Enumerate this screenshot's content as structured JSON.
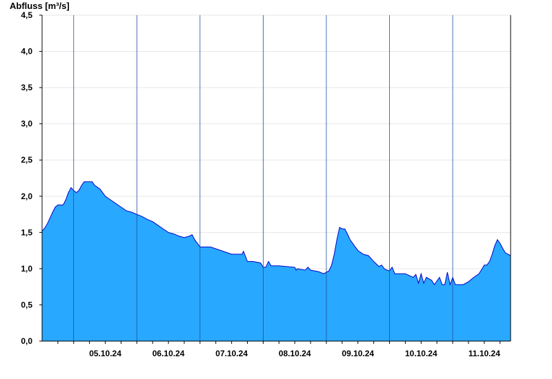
{
  "chart_data": {
    "type": "area",
    "ylabel": "Abfluss [m³/s]",
    "ylim": [
      0,
      4.5
    ],
    "xlim": [
      "2024-10-04T12:00",
      "2024-10-11T22:00"
    ],
    "y_ticks": [
      "0,0",
      "0,5",
      "1,0",
      "1,5",
      "2,0",
      "2,5",
      "3,0",
      "3,5",
      "4,0",
      "4,5"
    ],
    "y_tick_values": [
      0,
      0.5,
      1.0,
      1.5,
      2.0,
      2.5,
      3.0,
      3.5,
      4.0,
      4.5
    ],
    "x_tick_labels": [
      "05.10.24",
      "06.10.24",
      "07.10.24",
      "08.10.24",
      "09.10.24",
      "10.10.24",
      "11.10.24"
    ],
    "x_tick_dates": [
      "2024-10-05T12:00",
      "2024-10-06T12:00",
      "2024-10-07T12:00",
      "2024-10-08T12:00",
      "2024-10-09T12:00",
      "2024-10-10T12:00",
      "2024-10-11T12:00"
    ],
    "day_boundaries": [
      "2024-10-05T00:00",
      "2024-10-06T00:00",
      "2024-10-07T00:00",
      "2024-10-08T00:00",
      "2024-10-09T00:00",
      "2024-10-10T00:00",
      "2024-10-11T00:00",
      "2024-10-12T00:00"
    ],
    "grid": "horizontal",
    "fill_color": "#29a8ff",
    "line_color": "#0000c8",
    "series": [
      {
        "x": [
          "2024-10-04T12:00",
          "2024-10-04T13:00",
          "2024-10-04T14:00",
          "2024-10-04T15:00",
          "2024-10-04T16:00",
          "2024-10-04T17:00",
          "2024-10-04T18:00",
          "2024-10-04T20:00",
          "2024-10-04T21:00",
          "2024-10-04T22:00",
          "2024-10-04T23:00",
          "2024-10-05T00:00",
          "2024-10-05T01:00",
          "2024-10-05T02:00",
          "2024-10-05T03:00",
          "2024-10-05T04:00",
          "2024-10-05T05:00",
          "2024-10-05T06:00",
          "2024-10-05T07:00",
          "2024-10-05T08:00",
          "2024-10-05T10:00",
          "2024-10-05T12:00",
          "2024-10-05T14:00",
          "2024-10-05T16:00",
          "2024-10-05T18:00",
          "2024-10-05T20:00",
          "2024-10-05T22:00",
          "2024-10-06T00:00",
          "2024-10-06T02:00",
          "2024-10-06T04:00",
          "2024-10-06T06:00",
          "2024-10-06T08:00",
          "2024-10-06T10:00",
          "2024-10-06T12:00",
          "2024-10-06T14:00",
          "2024-10-06T16:00",
          "2024-10-06T18:00",
          "2024-10-06T20:00",
          "2024-10-06T21:00",
          "2024-10-06T22:00",
          "2024-10-07T00:00",
          "2024-10-07T04:00",
          "2024-10-07T08:00",
          "2024-10-07T12:00",
          "2024-10-07T16:00",
          "2024-10-07T16:30",
          "2024-10-07T17:30",
          "2024-10-07T18:00",
          "2024-10-07T20:00",
          "2024-10-07T23:00",
          "2024-10-08T00:00",
          "2024-10-08T01:00",
          "2024-10-08T02:00",
          "2024-10-08T03:00",
          "2024-10-08T06:00",
          "2024-10-08T12:00",
          "2024-10-08T12:30",
          "2024-10-08T13:00",
          "2024-10-08T16:00",
          "2024-10-08T17:00",
          "2024-10-08T18:00",
          "2024-10-08T21:00",
          "2024-10-08T23:00",
          "2024-10-09T01:00",
          "2024-10-09T02:00",
          "2024-10-09T03:00",
          "2024-10-09T04:00",
          "2024-10-09T05:00",
          "2024-10-09T06:00",
          "2024-10-09T07:00",
          "2024-10-09T08:00",
          "2024-10-09T09:00",
          "2024-10-09T10:00",
          "2024-10-09T11:00",
          "2024-10-09T12:00",
          "2024-10-09T14:00",
          "2024-10-09T16:00",
          "2024-10-09T18:00",
          "2024-10-09T20:00",
          "2024-10-09T21:00",
          "2024-10-09T22:00",
          "2024-10-09T23:00",
          "2024-10-10T00:00",
          "2024-10-10T01:00",
          "2024-10-10T02:00",
          "2024-10-10T06:00",
          "2024-10-10T09:00",
          "2024-10-10T10:00",
          "2024-10-10T11:00",
          "2024-10-10T12:00",
          "2024-10-10T13:00",
          "2024-10-10T14:00",
          "2024-10-10T16:00",
          "2024-10-10T17:00",
          "2024-10-10T19:00",
          "2024-10-10T20:00",
          "2024-10-10T21:00",
          "2024-10-10T22:00",
          "2024-10-10T23:00",
          "2024-10-11T00:00",
          "2024-10-11T01:00",
          "2024-10-11T02:00",
          "2024-10-11T03:00",
          "2024-10-11T04:00",
          "2024-10-11T06:00",
          "2024-10-11T08:00",
          "2024-10-11T10:00",
          "2024-10-11T12:00",
          "2024-10-11T13:00",
          "2024-10-11T14:00",
          "2024-10-11T15:00",
          "2024-10-11T16:00",
          "2024-10-11T17:00",
          "2024-10-11T18:00",
          "2024-10-11T19:00",
          "2024-10-11T20:00",
          "2024-10-11T21:00",
          "2024-10-11T22:00"
        ],
        "y": [
          1.52,
          1.56,
          1.62,
          1.7,
          1.78,
          1.85,
          1.88,
          1.88,
          1.95,
          2.05,
          2.12,
          2.08,
          2.05,
          2.08,
          2.15,
          2.2,
          2.2,
          2.2,
          2.2,
          2.15,
          2.1,
          2.0,
          1.95,
          1.9,
          1.85,
          1.8,
          1.78,
          1.75,
          1.72,
          1.68,
          1.65,
          1.6,
          1.55,
          1.5,
          1.48,
          1.45,
          1.43,
          1.45,
          1.47,
          1.4,
          1.3,
          1.3,
          1.25,
          1.2,
          1.2,
          1.24,
          1.15,
          1.1,
          1.1,
          1.08,
          1.02,
          1.02,
          1.1,
          1.04,
          1.04,
          1.02,
          0.98,
          1.0,
          0.98,
          1.02,
          0.98,
          0.96,
          0.93,
          0.97,
          1.05,
          1.2,
          1.4,
          1.57,
          1.55,
          1.55,
          1.48,
          1.4,
          1.35,
          1.3,
          1.25,
          1.2,
          1.18,
          1.1,
          1.03,
          1.05,
          1.0,
          0.98,
          0.97,
          1.02,
          0.93,
          0.93,
          0.88,
          0.92,
          0.8,
          0.93,
          0.8,
          0.88,
          0.84,
          0.78,
          0.88,
          0.78,
          0.78,
          0.95,
          0.78,
          0.88,
          0.78,
          0.78,
          0.78,
          0.78,
          0.82,
          0.88,
          0.93,
          1.05,
          1.05,
          1.1,
          1.2,
          1.32,
          1.4,
          1.35,
          1.28,
          1.22,
          1.2,
          1.18
        ]
      }
    ]
  }
}
